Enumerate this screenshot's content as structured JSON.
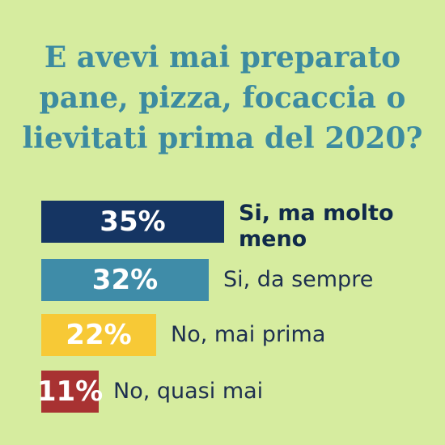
{
  "chart_data": {
    "type": "bar",
    "orientation": "horizontal",
    "title_lines": [
      "E avevi mai preparato",
      "pane, pizza, focaccia o",
      "lievitati prima del 2020?"
    ],
    "categories": [
      "Si, ma molto meno",
      "Si, da sempre",
      "No, mai prima",
      "No, quasi mai"
    ],
    "values": [
      35,
      32,
      22,
      11
    ],
    "value_labels": [
      "35%",
      "32%",
      "22%",
      "11%"
    ],
    "label_lines": [
      [
        "Si, ma molto",
        "meno"
      ],
      [
        "Si, da sempre"
      ],
      [
        "No, mai prima"
      ],
      [
        "No, quasi mai"
      ]
    ],
    "colors": [
      "#153563",
      "#3f8ca8",
      "#f7c936",
      "#a83232"
    ],
    "highlight_index": 0
  }
}
